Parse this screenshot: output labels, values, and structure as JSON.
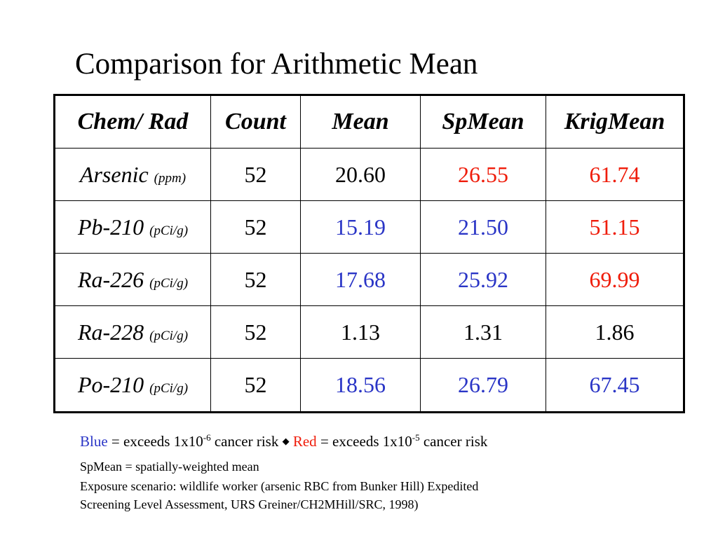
{
  "title": "Comparison for Arithmetic Mean",
  "table": {
    "headers": [
      "Chem/ Rad",
      "Count",
      "Mean",
      "SpMean",
      "KrigMean"
    ],
    "rows": [
      {
        "chem": "Arsenic",
        "unit": "(ppm)",
        "count": "52",
        "mean": "20.60",
        "spmean": "26.55",
        "krigmean": "61.74"
      },
      {
        "chem": "Pb-210",
        "unit": "(pCi/g)",
        "count": "52",
        "mean": "15.19",
        "spmean": "21.50",
        "krigmean": "51.15"
      },
      {
        "chem": "Ra-226",
        "unit": "(pCi/g)",
        "count": "52",
        "mean": "17.68",
        "spmean": "25.92",
        "krigmean": "69.99"
      },
      {
        "chem": "Ra-228",
        "unit": "(pCi/g)",
        "count": "52",
        "mean": "1.13",
        "spmean": "1.31",
        "krigmean": "1.86"
      },
      {
        "chem": "Po-210",
        "unit": "(pCi/g)",
        "count": "52",
        "mean": "18.56",
        "spmean": "26.79",
        "krigmean": "67.45"
      }
    ],
    "cell_colors": [
      [
        "black",
        "red",
        "red"
      ],
      [
        "blue",
        "blue",
        "red"
      ],
      [
        "blue",
        "blue",
        "red"
      ],
      [
        "black",
        "black",
        "black"
      ],
      [
        "blue",
        "blue",
        "blue"
      ]
    ]
  },
  "colors": {
    "blue": "#2a35c6",
    "red": "#ef1c0a"
  },
  "legend": {
    "blue_word": "Blue",
    "blue_text_pre": " = exceeds 1x10",
    "blue_exp": "-6",
    "blue_text_post": " cancer risk ",
    "separator_icon": "diamond-bullet-icon",
    "red_word": "Red",
    "red_text_pre": " = exceeds 1x10",
    "red_exp": "-5",
    "red_text_post": " cancer risk"
  },
  "notes": {
    "spmean": "SpMean = spatially-weighted mean",
    "exposure_line1": "Exposure scenario: wildlife worker (arsenic RBC from Bunker Hill) Expedited",
    "exposure_line2": "Screening Level Assessment, URS Greiner/CH2MHill/SRC, 1998)"
  }
}
